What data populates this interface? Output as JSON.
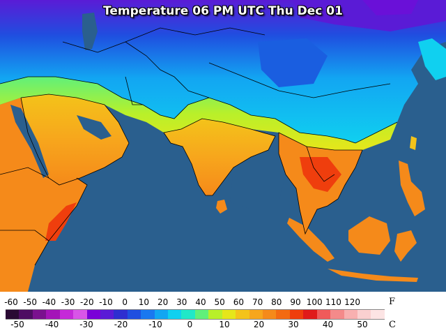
{
  "title": "Temperature 06 PM UTC Thu Dec 01",
  "legend": {
    "fahrenheit_unit": "F",
    "celsius_unit": "C",
    "fahrenheit_ticks": [
      "-60",
      "-50",
      "-40",
      "-30",
      "-20",
      "-10",
      "0",
      "10",
      "20",
      "30",
      "40",
      "50",
      "60",
      "70",
      "80",
      "90",
      "100",
      "110",
      "120"
    ],
    "celsius_ticks": [
      "-50",
      "-40",
      "-30",
      "-20",
      "-10",
      "0",
      "10",
      "20",
      "30",
      "40",
      "50"
    ],
    "colors": [
      "#2a0a33",
      "#4e0d62",
      "#7a118e",
      "#a414b8",
      "#c52ad8",
      "#d955e8",
      "#7a00d8",
      "#5a1bd6",
      "#2e2ed0",
      "#1f4fe0",
      "#1a78f0",
      "#12a6f2",
      "#10d0f0",
      "#20e8c8",
      "#60f07a",
      "#b8f02a",
      "#e6e61a",
      "#f4c31a",
      "#f7a61c",
      "#f58a1a",
      "#f36a12",
      "#ef3e0d",
      "#e01a1a",
      "#f05a5a",
      "#f48a8a",
      "#f8b0b0",
      "#fad0d0",
      "#fce4e4"
    ]
  },
  "map": {
    "region": "South and Southeast Asia, Middle East, East Africa",
    "colors": {
      "ocean": "#2a5f8e",
      "hot": "#f47f1b",
      "warm": "#f7a623",
      "mild": "#e8e01a",
      "cool": "#60f07a",
      "cold": "#12a6f2",
      "colder": "#1a5ee0",
      "coldest": "#6a10d8",
      "border": "#000000"
    }
  }
}
